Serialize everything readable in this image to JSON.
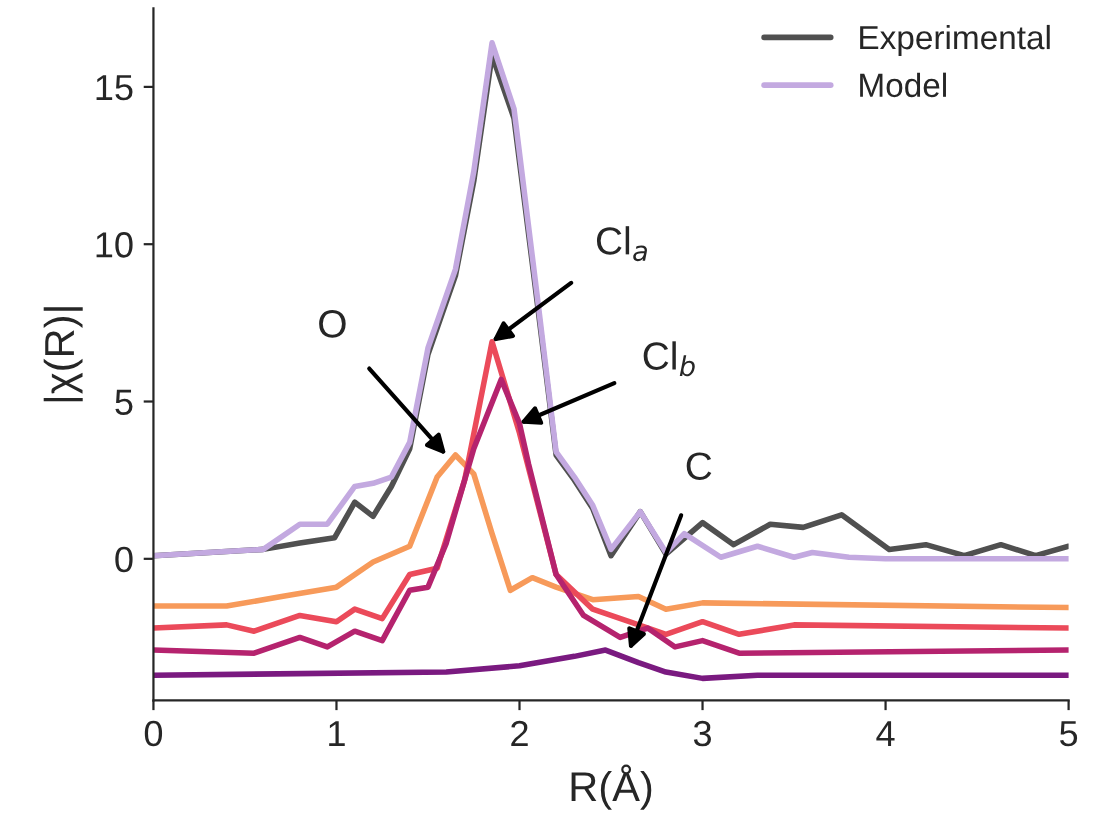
{
  "chart_data": {
    "type": "line",
    "xlabel": "R(Å)",
    "ylabel": "|χ(R)|",
    "xlim": [
      0,
      5
    ],
    "ylim": [
      -4.5,
      17.5
    ],
    "xticks": [
      0,
      1,
      2,
      3,
      4,
      5
    ],
    "yticks": [
      0,
      5,
      10,
      15
    ],
    "legend": "top right",
    "grid": false,
    "series": [
      {
        "name": "Experimental",
        "color": "#505050",
        "x": [
          0,
          0.6,
          0.8,
          0.99,
          1.1,
          1.2,
          1.3,
          1.4,
          1.5,
          1.65,
          1.75,
          1.85,
          1.97,
          2.1,
          2.2,
          2.3,
          2.4,
          2.5,
          2.66,
          2.8,
          3.0,
          3.17,
          3.37,
          3.55,
          3.76,
          4.02,
          4.22,
          4.43,
          4.63,
          4.82,
          5
        ],
        "values": [
          0.1,
          0.3,
          0.5,
          0.67,
          1.8,
          1.35,
          2.3,
          3.5,
          6.5,
          9,
          12,
          16,
          14,
          8,
          3.3,
          2.5,
          1.6,
          0.1,
          1.5,
          0.15,
          1.15,
          0.45,
          1.1,
          1.0,
          1.4,
          0.3,
          0.45,
          0.1,
          0.45,
          0.1,
          0.4
        ]
      },
      {
        "name": "Model",
        "color": "#c3a9e0",
        "x": [
          0,
          0.3,
          0.6,
          0.8,
          0.95,
          1.1,
          1.2,
          1.3,
          1.4,
          1.5,
          1.65,
          1.75,
          1.85,
          1.97,
          2.1,
          2.2,
          2.3,
          2.4,
          2.5,
          2.66,
          2.8,
          2.9,
          3.1,
          3.3,
          3.5,
          3.6,
          3.8,
          4.0,
          5
        ],
        "values": [
          0.1,
          0.2,
          0.3,
          1.1,
          1.1,
          2.3,
          2.4,
          2.6,
          3.7,
          6.7,
          9.2,
          12.3,
          16.4,
          14.3,
          8.2,
          3.4,
          2.6,
          1.7,
          0.3,
          1.5,
          0.2,
          0.8,
          0.05,
          0.4,
          0.05,
          0.2,
          0.05,
          0,
          0
        ]
      },
      {
        "color": "#f79a5a",
        "x": [
          0,
          0.4,
          0.7,
          1.0,
          1.2,
          1.4,
          1.55,
          1.65,
          1.75,
          1.85,
          1.95,
          2.07,
          2.2,
          2.4,
          2.65,
          2.8,
          3.0,
          5
        ],
        "values": [
          -1.5,
          -1.5,
          -1.2,
          -0.9,
          -0.1,
          0.4,
          2.6,
          3.3,
          2.7,
          0.8,
          -1.0,
          -0.6,
          -0.9,
          -1.3,
          -1.2,
          -1.6,
          -1.4,
          -1.55
        ]
      },
      {
        "color": "#eb4a5a",
        "x": [
          0,
          0.4,
          0.55,
          0.8,
          1.0,
          1.1,
          1.25,
          1.4,
          1.55,
          1.7,
          1.85,
          2.0,
          2.2,
          2.4,
          2.6,
          2.8,
          3.0,
          3.2,
          3.5,
          5
        ],
        "values": [
          -2.2,
          -2.1,
          -2.3,
          -1.8,
          -2.0,
          -1.6,
          -1.9,
          -0.5,
          -0.3,
          2.5,
          6.9,
          4.0,
          -0.5,
          -1.6,
          -2.0,
          -2.4,
          -2.0,
          -2.4,
          -2.1,
          -2.2
        ]
      },
      {
        "color": "#b5236e",
        "x": [
          0,
          0.55,
          0.8,
          0.95,
          1.1,
          1.25,
          1.4,
          1.5,
          1.6,
          1.75,
          1.9,
          2.0,
          2.05,
          2.2,
          2.35,
          2.55,
          2.7,
          2.85,
          3.0,
          3.2,
          5
        ],
        "values": [
          -2.9,
          -3.0,
          -2.5,
          -2.8,
          -2.3,
          -2.6,
          -1.0,
          -0.9,
          0.5,
          3.5,
          5.7,
          4.3,
          3.0,
          -0.5,
          -1.8,
          -2.5,
          -2.2,
          -2.8,
          -2.6,
          -3.0,
          -2.9
        ]
      },
      {
        "color": "#7a1a80",
        "x": [
          0,
          1.6,
          2.0,
          2.3,
          2.47,
          2.65,
          2.8,
          3.0,
          3.3,
          5
        ],
        "values": [
          -3.7,
          -3.6,
          -3.4,
          -3.1,
          -2.9,
          -3.3,
          -3.6,
          -3.8,
          -3.7,
          -3.7
        ]
      }
    ],
    "annotations": [
      {
        "text": "O",
        "x": 1.6,
        "y": 3.3
      },
      {
        "text": "Cl$_{a}$",
        "x": 1.85,
        "y": 6.9
      },
      {
        "text": "Cl$_{b}$",
        "x": 2.0,
        "y": 4.3
      },
      {
        "text": "C",
        "x": 2.6,
        "y": -2.9
      }
    ]
  }
}
